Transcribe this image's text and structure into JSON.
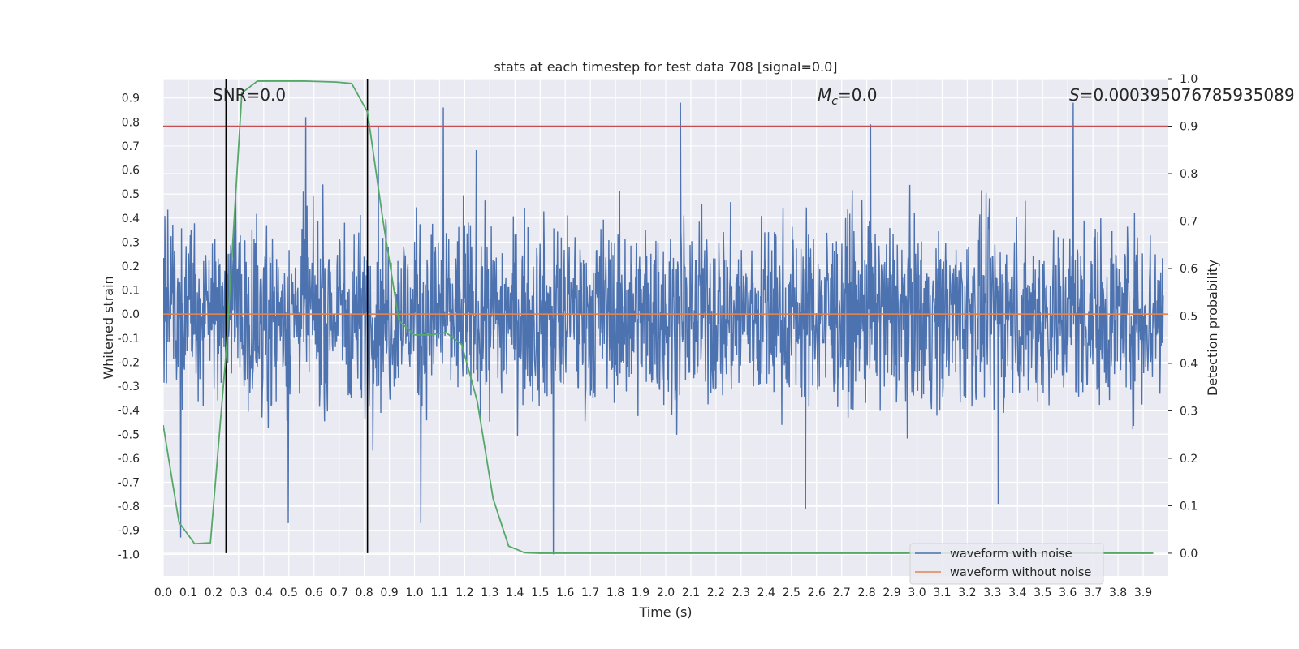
{
  "chart_data": {
    "type": "line",
    "title": "stats at each timestep for test data 708 [signal=0.0]",
    "xlabel": "Time (s)",
    "ylabel": "Whitened strain",
    "y2label": "Detection probability",
    "xlim": [
      0.0,
      4.0
    ],
    "ylim": [
      -1.09,
      0.98
    ],
    "y2lim": [
      -0.048,
      1.0
    ],
    "grid": true,
    "x_ticks": [
      "0.0",
      "0.1",
      "0.2",
      "0.3",
      "0.4",
      "0.5",
      "0.6",
      "0.7",
      "0.8",
      "0.9",
      "1.0",
      "1.1",
      "1.2",
      "1.3",
      "1.4",
      "1.5",
      "1.6",
      "1.7",
      "1.8",
      "1.9",
      "2.0",
      "2.1",
      "2.2",
      "2.3",
      "2.4",
      "2.5",
      "2.6",
      "2.7",
      "2.8",
      "2.9",
      "3.0",
      "3.1",
      "3.2",
      "3.3",
      "3.4",
      "3.5",
      "3.6",
      "3.7",
      "3.8",
      "3.9"
    ],
    "y_ticks": [
      "0.9",
      "0.8",
      "0.7",
      "0.6",
      "0.5",
      "0.4",
      "0.3",
      "0.2",
      "0.1",
      "0.0",
      "-0.1",
      "-0.2",
      "-0.3",
      "-0.4",
      "-0.5",
      "-0.6",
      "-0.7",
      "-0.8",
      "-0.9",
      "-1.0"
    ],
    "y2_ticks": [
      "1.0",
      "0.9",
      "0.8",
      "0.7",
      "0.6",
      "0.5",
      "0.4",
      "0.3",
      "0.2",
      "0.1",
      "0.0"
    ],
    "annotations": {
      "snr": "SNR=0.0",
      "mc_symbol": "M",
      "mc_sub": "c",
      "mc_value": "=0.0",
      "s_symbol": "S",
      "s_value": "=0.000395076785935089"
    },
    "threshold_y2": 0.9,
    "vertical_lines_x": [
      0.25,
      0.813
    ],
    "legend": {
      "position": "lower right",
      "entries": [
        "waveform with noise",
        "waveform without noise"
      ]
    },
    "series": [
      {
        "name": "waveform with noise",
        "axis": "y",
        "color": "#4c72b0",
        "note": "noisy whitened strain, roughly within -0.6 .. 0.6 with occasional spikes up to 0.88 and down to -1.0",
        "amplitude_range": [
          -1.0,
          0.88
        ],
        "spikes": [
          {
            "x": 2.07,
            "y": 0.88
          },
          {
            "x": 3.64,
            "y": 0.88
          },
          {
            "x": 1.12,
            "y": 0.86
          },
          {
            "x": 2.83,
            "y": 0.79
          },
          {
            "x": 0.86,
            "y": 0.78
          },
          {
            "x": 0.57,
            "y": 0.82
          },
          {
            "x": 1.56,
            "y": -1.0
          },
          {
            "x": 0.07,
            "y": -0.93
          },
          {
            "x": 0.5,
            "y": -0.87
          },
          {
            "x": 1.03,
            "y": -0.87
          },
          {
            "x": 2.57,
            "y": -0.81
          },
          {
            "x": 3.34,
            "y": -0.79
          }
        ]
      },
      {
        "name": "waveform without noise",
        "axis": "y",
        "color": "#dd8452",
        "x": [
          0.0,
          4.0
        ],
        "y": [
          0.0,
          0.0
        ]
      },
      {
        "name": "detection probability",
        "axis": "y2",
        "color": "#55a868",
        "x": [
          0.0,
          0.063,
          0.125,
          0.188,
          0.25,
          0.313,
          0.375,
          0.438,
          0.5,
          0.563,
          0.625,
          0.688,
          0.75,
          0.813,
          0.875,
          0.938,
          1.0,
          1.063,
          1.125,
          1.188,
          1.25,
          1.313,
          1.375,
          1.438,
          1.5,
          1.563,
          1.625,
          1.688,
          1.75,
          1.813,
          1.875,
          1.938,
          2.0,
          2.5,
          3.0,
          3.5,
          3.94
        ],
        "y": [
          0.27,
          0.065,
          0.02,
          0.022,
          0.42,
          0.97,
          0.995,
          0.995,
          0.995,
          0.995,
          0.994,
          0.993,
          0.99,
          0.93,
          0.7,
          0.49,
          0.46,
          0.46,
          0.465,
          0.44,
          0.32,
          0.115,
          0.015,
          0.001,
          0.0,
          0.0,
          0.0,
          0.0,
          0.0,
          0.0,
          0.0,
          0.0,
          0.0,
          0.0,
          0.0,
          0.0,
          0.0
        ]
      }
    ]
  }
}
